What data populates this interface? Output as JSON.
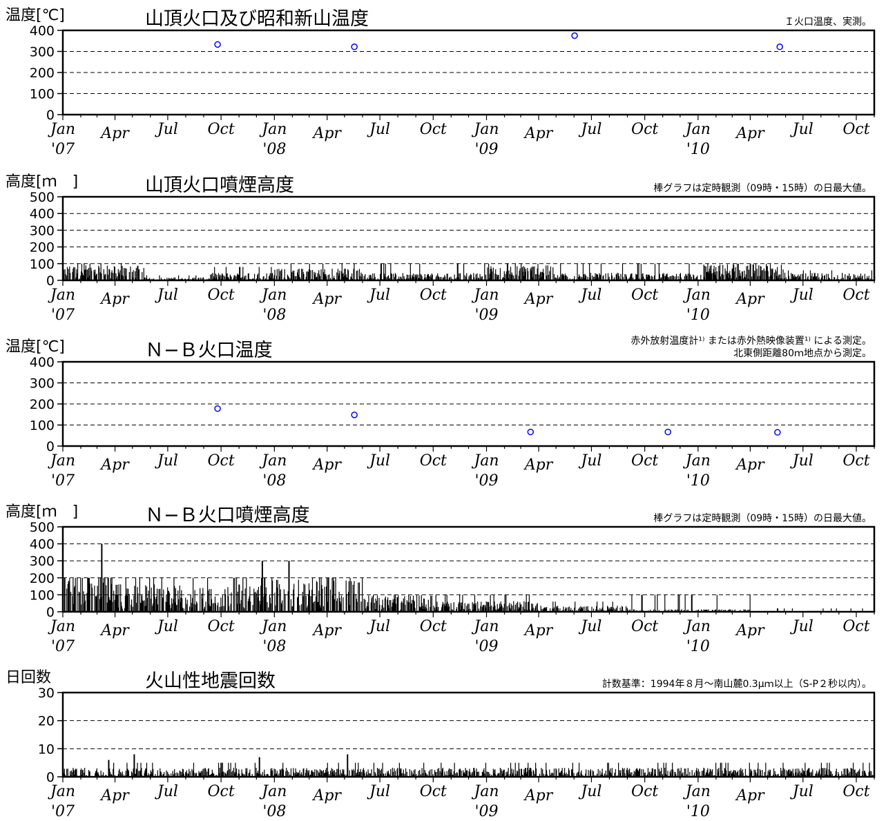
{
  "x_axis": {
    "month_labels": [
      "Jan",
      "Apr",
      "Jul",
      "Oct",
      "Jan",
      "Apr",
      "Jul",
      "Oct",
      "Jan",
      "Apr",
      "Jul",
      "Oct",
      "Jan",
      "Apr",
      "Jul",
      "Oct"
    ],
    "year_labels": [
      "'07",
      "'08",
      "'09",
      "'10"
    ]
  },
  "chart_data": [
    {
      "id": "summit-temp",
      "type": "scatter",
      "title": "山頂火口及び昭和新山温度",
      "ylabel": "温度[℃]",
      "note": [
        "Ｉ火口温度、実測。"
      ],
      "ylim": [
        0,
        400
      ],
      "yticks": [
        0,
        100,
        200,
        300,
        400
      ],
      "xrange": [
        "2007-01-01",
        "2010-11-01"
      ],
      "color": "#0000ff",
      "points": [
        {
          "x": "2007-09-25",
          "y": 333
        },
        {
          "x": "2008-05-18",
          "y": 322
        },
        {
          "x": "2009-06-02",
          "y": 375
        },
        {
          "x": "2010-05-22",
          "y": 322
        }
      ]
    },
    {
      "id": "summit-plume",
      "type": "bar",
      "title": "山頂火口噴煙高度",
      "ylabel": "高度[ｍ　]",
      "note": [
        "棒グラフは定時観測（09時・15時）の日最大値。"
      ],
      "ylim": [
        0,
        500
      ],
      "yticks": [
        0,
        100,
        200,
        300,
        400,
        500
      ],
      "xrange": [
        "2007-01-01",
        "2010-11-01"
      ],
      "segments": [
        {
          "from": "2007-01-01",
          "to": "2007-05-20",
          "level": 50,
          "max": 100
        },
        {
          "from": "2007-05-21",
          "to": "2007-09-10",
          "level": 10,
          "max": 30
        },
        {
          "from": "2007-09-11",
          "to": "2007-12-31",
          "level": 25,
          "max": 80
        },
        {
          "from": "2008-01-01",
          "to": "2008-05-31",
          "level": 40,
          "max": 100
        },
        {
          "from": "2008-06-01",
          "to": "2008-12-31",
          "level": 25,
          "max": 100
        },
        {
          "from": "2009-01-01",
          "to": "2009-04-30",
          "level": 50,
          "max": 100
        },
        {
          "from": "2009-05-01",
          "to": "2009-12-31",
          "level": 25,
          "max": 100
        },
        {
          "from": "2010-01-01",
          "to": "2010-05-31",
          "level": 55,
          "max": 100
        },
        {
          "from": "2010-06-01",
          "to": "2010-11-01",
          "level": 25,
          "max": 60
        }
      ]
    },
    {
      "id": "nb-temp",
      "type": "scatter",
      "title": "Ｎ−Ｂ火口温度",
      "ylabel": "温度[℃]",
      "note": [
        "赤外放射温度計¹⁾ または赤外熱映像装置¹⁾ による測定。",
        "北東側距離80ｍ地点から測定。"
      ],
      "ylim": [
        0,
        400
      ],
      "yticks": [
        0,
        100,
        200,
        300,
        400
      ],
      "xrange": [
        "2007-01-01",
        "2010-11-01"
      ],
      "color": "#0000ff",
      "points": [
        {
          "x": "2007-09-25",
          "y": 178
        },
        {
          "x": "2008-05-18",
          "y": 148
        },
        {
          "x": "2009-03-18",
          "y": 67
        },
        {
          "x": "2009-11-10",
          "y": 67
        },
        {
          "x": "2010-05-18",
          "y": 65
        }
      ]
    },
    {
      "id": "nb-plume",
      "type": "bar",
      "title": "Ｎ−Ｂ火口噴煙高度",
      "ylabel": "高度[ｍ　]",
      "note": [
        "棒グラフは定時観測（09時・15時）の日最大値。"
      ],
      "ylim": [
        0,
        500
      ],
      "yticks": [
        0,
        100,
        200,
        300,
        400,
        500
      ],
      "xrange": [
        "2007-01-01",
        "2010-11-01"
      ],
      "segments": [
        {
          "from": "2007-01-01",
          "to": "2007-03-31",
          "level": 130,
          "max": 200
        },
        {
          "from": "2007-04-01",
          "to": "2007-11-30",
          "level": 90,
          "max": 200
        },
        {
          "from": "2007-12-01",
          "to": "2008-05-31",
          "level": 120,
          "max": 200
        },
        {
          "from": "2008-06-01",
          "to": "2008-09-30",
          "level": 60,
          "max": 100
        },
        {
          "from": "2008-10-01",
          "to": "2009-03-31",
          "level": 35,
          "max": 100
        },
        {
          "from": "2009-04-01",
          "to": "2009-08-31",
          "level": 20,
          "max": 60
        },
        {
          "from": "2009-09-01",
          "to": "2010-03-31",
          "level": 8,
          "max": 100
        },
        {
          "from": "2010-04-01",
          "to": "2010-11-01",
          "level": 3,
          "max": 20
        }
      ],
      "spikes": [
        {
          "x": "2007-03-08",
          "y": 400
        },
        {
          "x": "2007-12-10",
          "y": 300
        },
        {
          "x": "2008-01-25",
          "y": 300
        },
        {
          "x": "2009-12-20",
          "y": 100
        }
      ]
    },
    {
      "id": "quake-count",
      "type": "bar",
      "title": "火山性地震回数",
      "ylabel": "日回数",
      "note": [
        "計数基準：1994年８月〜南山麓0.3μｍ以上（S-P２秒以内）。"
      ],
      "ylim": [
        0,
        30
      ],
      "yticks": [
        0,
        10,
        20,
        30
      ],
      "xrange": [
        "2007-01-01",
        "2010-11-01"
      ],
      "segments": [
        {
          "from": "2007-01-01",
          "to": "2010-11-01",
          "level": 1.8,
          "max": 5
        }
      ],
      "spikes": [
        {
          "x": "2007-05-03",
          "y": 8
        },
        {
          "x": "2007-12-05",
          "y": 7
        },
        {
          "x": "2008-05-05",
          "y": 8
        },
        {
          "x": "2007-03-20",
          "y": 6
        }
      ]
    }
  ]
}
